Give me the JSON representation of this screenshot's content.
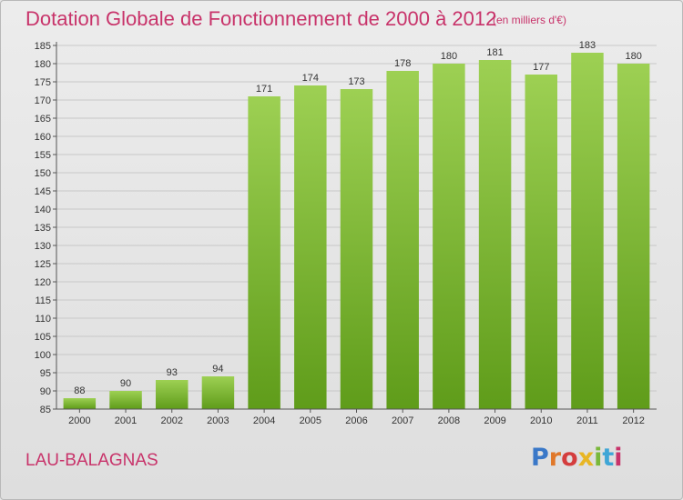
{
  "header": {
    "title": "Dotation Globale de Fonctionnement de 2000 à 2012",
    "subtitle": "(en milliers d'€)"
  },
  "footer": {
    "city": "LAU-BALAGNAS",
    "logo": "Proxiti"
  },
  "colors": {
    "accent": "#c8336a",
    "bar_light": "#9dd053",
    "bar_dark": "#5f9c1a"
  },
  "chart_data": {
    "type": "bar",
    "categories": [
      "2000",
      "2001",
      "2002",
      "2003",
      "2004",
      "2005",
      "2006",
      "2007",
      "2008",
      "2009",
      "2010",
      "2011",
      "2012"
    ],
    "values": [
      88,
      90,
      93,
      94,
      171,
      174,
      173,
      178,
      180,
      181,
      177,
      183,
      180
    ],
    "data_labels": [
      "88",
      "90",
      "93",
      "94",
      "171",
      "174",
      "173",
      "178",
      "180",
      "181",
      "177",
      "183",
      "180"
    ],
    "title": "Dotation Globale de Fonctionnement de 2000 à 2012",
    "ylim": [
      85,
      185
    ],
    "yticks": [
      "85",
      "90",
      "95",
      "100",
      "105",
      "110",
      "115",
      "120",
      "125",
      "130",
      "135",
      "140",
      "145",
      "150",
      "155",
      "160",
      "165",
      "170",
      "175",
      "180",
      "185"
    ],
    "grid": true
  }
}
